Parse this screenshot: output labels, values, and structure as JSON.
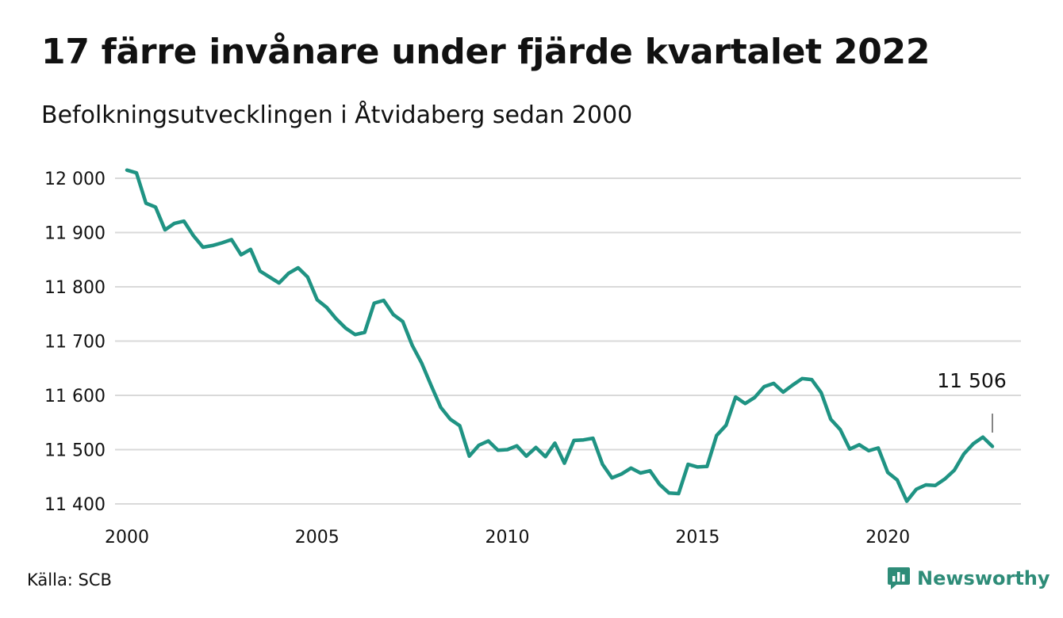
{
  "header": {
    "title": "17 färre invånare under fjärde kvartalet 2022",
    "subtitle": "Befolkningsutvecklingen i Åtvidaberg sedan 2000"
  },
  "footer": {
    "source": "Källa: SCB",
    "brand": "Newsworthy",
    "brand_icon": "bar-chart-speech-bubble-icon"
  },
  "colors": {
    "line": "#1f9383",
    "grid": "#d9d9d9",
    "brand": "#2e8c78"
  },
  "chart_data": {
    "type": "line",
    "title": "17 färre invånare under fjärde kvartalet 2022",
    "subtitle": "Befolkningsutvecklingen i Åtvidaberg sedan 2000",
    "xlabel": "",
    "ylabel": "",
    "x_ticks": [
      "2000",
      "2005",
      "2010",
      "2015",
      "2020"
    ],
    "x_tick_values": [
      2000,
      2005,
      2010,
      2015,
      2020
    ],
    "y_ticks": [
      "12 000",
      "11 900",
      "11 800",
      "11 700",
      "11 600",
      "11 500",
      "11 400"
    ],
    "y_tick_values": [
      12000,
      11900,
      11800,
      11700,
      11600,
      11500,
      11400
    ],
    "xlim": [
      2000,
      2023.5
    ],
    "ylim": [
      11385,
      12020
    ],
    "grid": true,
    "last_value_label": "11 506",
    "series": [
      {
        "x": [
          2000.0,
          2000.25,
          2000.5,
          2000.75,
          2001.0,
          2001.25,
          2001.5,
          2001.75,
          2002.0,
          2002.25,
          2002.5,
          2002.75,
          2003.0,
          2003.25,
          2003.5,
          2003.75,
          2004.0,
          2004.25,
          2004.5,
          2004.75,
          2005.0,
          2005.25,
          2005.5,
          2005.75,
          2006.0,
          2006.25,
          2006.5,
          2006.75,
          2007.0,
          2007.25,
          2007.5,
          2007.75,
          2008.0,
          2008.25,
          2008.5,
          2008.75,
          2009.0,
          2009.25,
          2009.5,
          2009.75,
          2010.0,
          2010.25,
          2010.5,
          2010.75,
          2011.0,
          2011.25,
          2011.5,
          2011.75,
          2012.0,
          2012.25,
          2012.5,
          2012.75,
          2013.0,
          2013.25,
          2013.5,
          2013.75,
          2014.0,
          2014.25,
          2014.5,
          2014.75,
          2015.0,
          2015.25,
          2015.5,
          2015.75,
          2016.0,
          2016.25,
          2016.5,
          2016.75,
          2017.0,
          2017.25,
          2017.5,
          2017.75,
          2018.0,
          2018.25,
          2018.5,
          2018.75,
          2019.0,
          2019.25,
          2019.5,
          2019.75,
          2020.0,
          2020.25,
          2020.5,
          2020.75,
          2021.0,
          2021.25,
          2021.5,
          2021.75,
          2022.0,
          2022.25,
          2022.5,
          2022.75
        ],
        "values": [
          12015,
          12010,
          11954,
          11947,
          11905,
          11917,
          11921,
          11894,
          11873,
          11876,
          11881,
          11887,
          11859,
          11869,
          11829,
          11818,
          11807,
          11825,
          11835,
          11818,
          11776,
          11762,
          11741,
          11724,
          11712,
          11716,
          11770,
          11775,
          11749,
          11736,
          11692,
          11659,
          11618,
          11578,
          11556,
          11544,
          11488,
          11508,
          11516,
          11499,
          11500,
          11507,
          11488,
          11504,
          11487,
          11512,
          11475,
          11517,
          11518,
          11521,
          11473,
          11448,
          11455,
          11466,
          11457,
          11461,
          11436,
          11420,
          11419,
          11473,
          11468,
          11469,
          11526,
          11545,
          11597,
          11585,
          11596,
          11616,
          11622,
          11606,
          11619,
          11631,
          11629,
          11605,
          11556,
          11537,
          11501,
          11509,
          11498,
          11503,
          11458,
          11444,
          11405,
          11427,
          11435,
          11434,
          11446,
          11462,
          11492,
          11511,
          11523,
          11506
        ]
      }
    ]
  }
}
